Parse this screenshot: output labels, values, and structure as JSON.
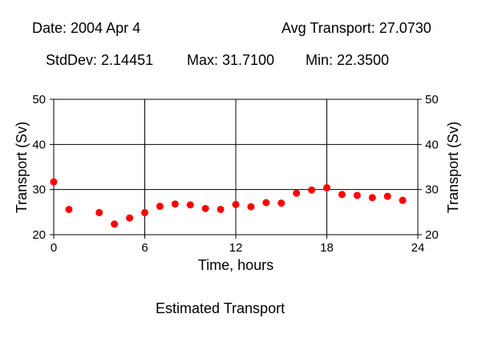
{
  "header": {
    "date_text": "Date: 2004 Apr 4",
    "avg_text": "Avg Transport: 27.0730",
    "stddev_text": "StdDev: 2.14451",
    "max_text": "Max: 31.7100",
    "min_text": "Min: 22.3500"
  },
  "footer": {
    "caption": "Estimated Transport"
  },
  "chart_data": {
    "type": "scatter",
    "title": "",
    "xlabel": "Time, hours",
    "ylabel": "Transport (Sv)",
    "ylabel_right": "Transport (Sv)",
    "xlim": [
      0,
      24
    ],
    "ylim": [
      20,
      50
    ],
    "xticks": [
      0,
      6,
      12,
      18,
      24
    ],
    "yticks": [
      20,
      30,
      40,
      50
    ],
    "grid": true,
    "marker_color": "#ff0000",
    "x": [
      0,
      1,
      3,
      4,
      5,
      6,
      7,
      8,
      9,
      10,
      11,
      12,
      13,
      14,
      15,
      16,
      17,
      18,
      19,
      20,
      21,
      22,
      23
    ],
    "y": [
      31.71,
      25.6,
      24.9,
      22.35,
      23.7,
      24.9,
      26.3,
      26.8,
      26.6,
      25.8,
      25.6,
      26.7,
      26.2,
      27.1,
      27.0,
      29.2,
      29.9,
      30.4,
      28.9,
      28.7,
      28.2,
      28.5,
      27.6
    ]
  }
}
